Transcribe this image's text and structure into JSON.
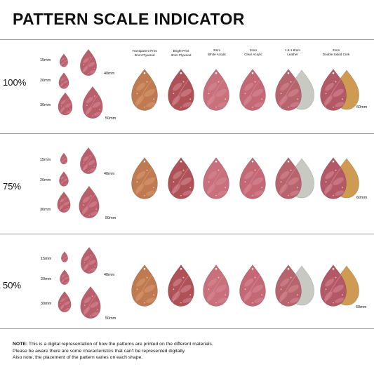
{
  "title": "PATTERN SCALE INDICATOR",
  "materials": [
    {
      "line1": "Transparent Print",
      "line2": "3mm Plywood",
      "color": "#c07a52"
    },
    {
      "line1": "Bright Print",
      "line2": "3mm Plywood",
      "color": "#ae5258"
    },
    {
      "line1": "3mm",
      "line2": "White Acrylic",
      "color": "#c8707c"
    },
    {
      "line1": "3mm",
      "line2": "Clear Acrylic",
      "color": "#c46876"
    },
    {
      "line1": "1.6-1.8mm",
      "line2": "Leather",
      "color": "#b8646e"
    },
    {
      "line1": "2mm",
      "line2": "Double Sided Cork",
      "color": "#b35866"
    }
  ],
  "sizes": {
    "s15": "15mm",
    "s20": "20mm",
    "s30": "30mm",
    "s40": "40mm",
    "s50": "50mm",
    "s60": "60mm"
  },
  "scales": [
    {
      "label": "100%"
    },
    {
      "label": "75%"
    },
    {
      "label": "50%"
    }
  ],
  "note": {
    "prefix": "NOTE:",
    "line1": " This is a digital representation of how the patterns are printed on the different materials.",
    "line2": "Please be aware there are some characteristics that can't be represented digitally.",
    "line3": "Also note, the placement of the pattern varies on each shape."
  },
  "colors": {
    "pink": "#b95f6c",
    "leaf": "#d88a98",
    "leather_back": "#c9c9c3",
    "cork_back": "#cf9a52"
  }
}
